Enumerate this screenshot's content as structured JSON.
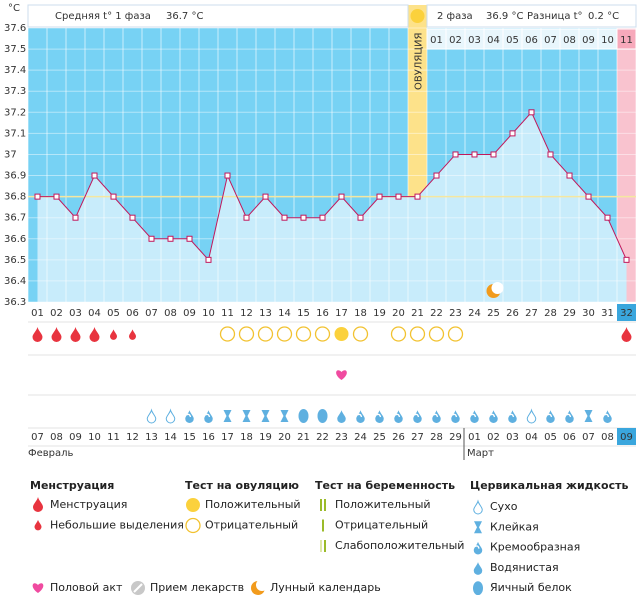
{
  "header": {
    "phase1_label": "Средняя t° 1 фаза",
    "phase1_value": "36.7 °C",
    "phase2_label": "2 фаза",
    "phase2_value": "36.9 °C",
    "diff_label": "Разница t°",
    "diff_value": "0.2 °C"
  },
  "chart_data": {
    "type": "line",
    "y_unit": "°C",
    "x": [
      "01",
      "02",
      "03",
      "04",
      "05",
      "06",
      "07",
      "08",
      "09",
      "10",
      "11",
      "12",
      "13",
      "14",
      "15",
      "16",
      "17",
      "18",
      "19",
      "20",
      "21",
      "22",
      "23",
      "24",
      "25",
      "26",
      "27",
      "28",
      "29",
      "30",
      "31",
      "32"
    ],
    "values": [
      36.8,
      36.8,
      36.7,
      36.9,
      36.8,
      36.7,
      36.6,
      36.6,
      36.6,
      36.5,
      36.9,
      36.7,
      36.8,
      36.7,
      36.7,
      36.7,
      36.8,
      36.7,
      36.8,
      36.8,
      36.8,
      36.9,
      37.0,
      37.0,
      37.0,
      37.1,
      37.2,
      37.0,
      36.9,
      36.8,
      36.7,
      36.5
    ],
    "color": "#c2185b",
    "ylim": [
      36.3,
      37.6
    ],
    "yticks": [
      36.3,
      36.4,
      36.5,
      36.6,
      36.7,
      36.8,
      36.9,
      37,
      37.1,
      37.2,
      37.3,
      37.4,
      37.5,
      37.6
    ],
    "coverline": 36.8,
    "ovulation_day": "21",
    "ovulation_label": "ОВУЛЯЦИЯ",
    "highlight_day": "32",
    "phase2_days": [
      "01",
      "02",
      "03",
      "04",
      "05",
      "06",
      "07",
      "08",
      "09",
      "10",
      "11"
    ]
  },
  "dates": [
    {
      "text": "07",
      "color": "#d0021b"
    },
    "08",
    "09",
    "10",
    "11",
    "12",
    {
      "text": "13",
      "color": "#d0021b"
    },
    {
      "text": "14",
      "color": "#d0021b"
    },
    "15",
    "16",
    "17",
    "18",
    "19",
    {
      "text": "20",
      "color": "#d0021b"
    },
    {
      "text": "21",
      "color": "#d0021b"
    },
    "22",
    "23",
    "24",
    "25",
    "26",
    {
      "text": "27",
      "color": "#d0021b"
    },
    {
      "text": "28",
      "color": "#d0021b"
    },
    "29",
    "01",
    "02",
    "03",
    "04",
    {
      "text": "05",
      "color": "#d0021b"
    },
    {
      "text": "06",
      "color": "#d0021b"
    },
    "07",
    "08",
    "09"
  ],
  "months": [
    "Февраль",
    "Март"
  ],
  "legend": {
    "menstruation": {
      "title": "Менструация",
      "items": [
        {
          "label": "Менструация",
          "days": [
            "01",
            "02",
            "03",
            "04",
            "32"
          ]
        },
        {
          "label": "Небольшие выделения",
          "days": [
            "05",
            "06"
          ]
        }
      ]
    },
    "ovulation_test": {
      "title": "Тест на овуляцию",
      "items": [
        {
          "label": "Положительный",
          "days": [
            "17"
          ]
        },
        {
          "label": "Отрицательный",
          "days": [
            "11",
            "12",
            "13",
            "14",
            "15",
            "16",
            "18",
            "20",
            "21",
            "22",
            "23"
          ]
        }
      ]
    },
    "pregnancy_test": {
      "title": "Тест на беременность",
      "items": [
        {
          "label": "Положительный",
          "days": []
        },
        {
          "label": "Отрицательный",
          "days": []
        },
        {
          "label": "Слабоположительный",
          "days": []
        }
      ]
    },
    "cervical_fluid": {
      "title": "Цервикальная жидкость",
      "items": [
        {
          "label": "Сухо",
          "days": [
            "07",
            "08",
            "27"
          ]
        },
        {
          "label": "Клейкая",
          "days": [
            "11",
            "12",
            "13",
            "14",
            "30"
          ]
        },
        {
          "label": "Кремообразная",
          "days": [
            "09",
            "10",
            "18",
            "19",
            "20",
            "21",
            "22",
            "23",
            "24",
            "25",
            "26",
            "28",
            "29",
            "31"
          ]
        },
        {
          "label": "Водянистая",
          "days": [
            "17"
          ]
        },
        {
          "label": "Яичный белок",
          "days": [
            "15",
            "16"
          ]
        }
      ]
    },
    "extras": [
      {
        "label": "Половой акт",
        "days": [
          "17"
        ]
      },
      {
        "label": "Прием лекарств",
        "days": []
      },
      {
        "label": "Лунный календарь",
        "days": [
          "25"
        ]
      }
    ]
  }
}
